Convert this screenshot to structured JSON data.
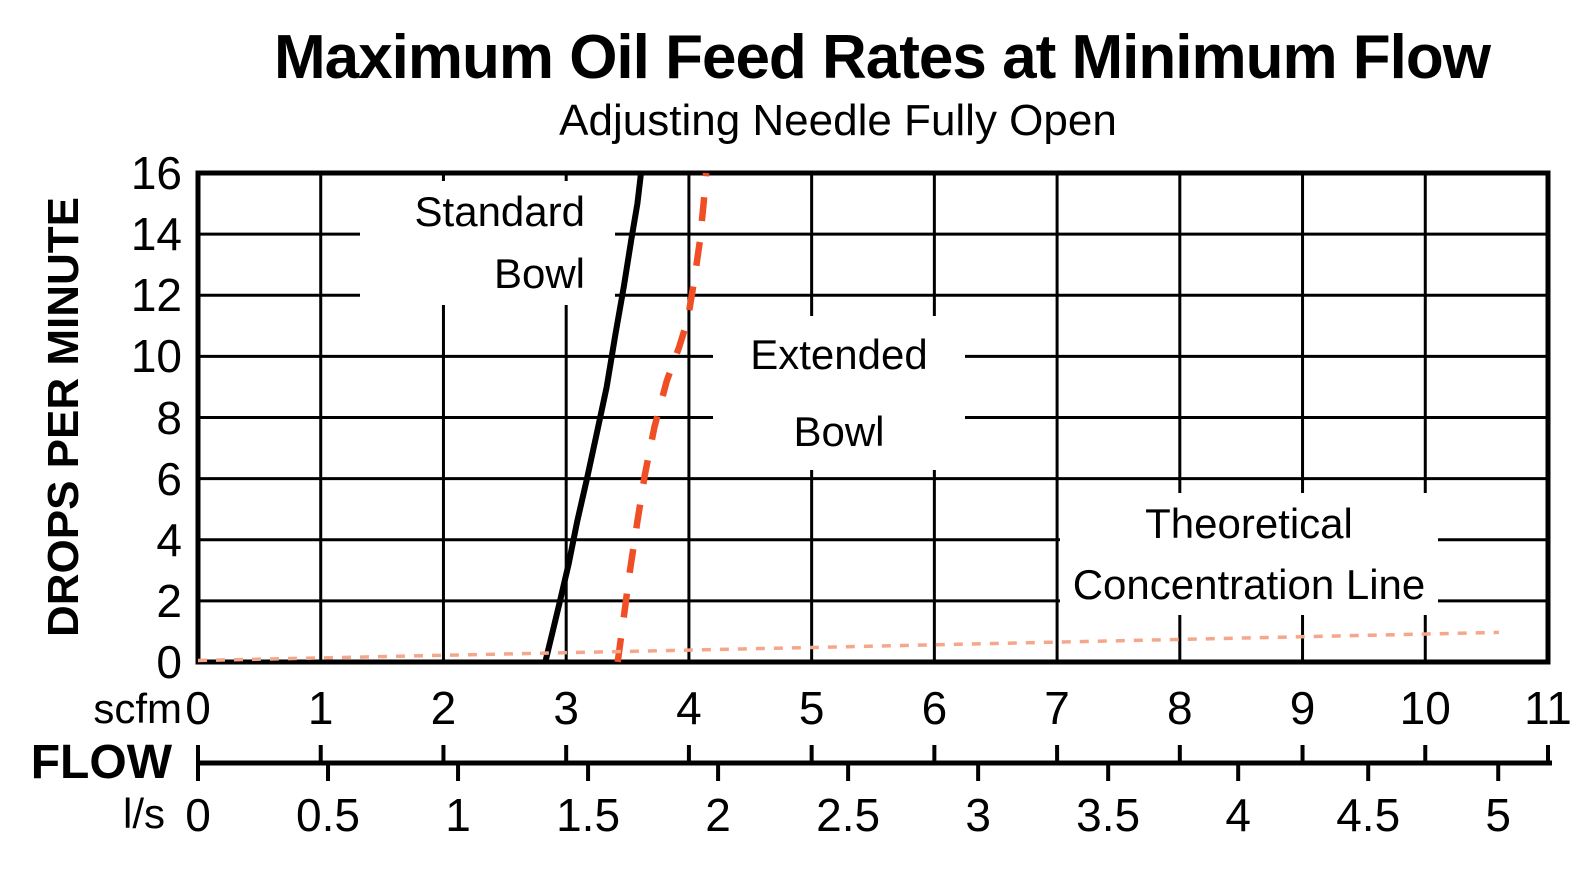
{
  "title": "Maximum Oil Feed Rates at Minimum Flow",
  "subtitle": "Adjusting Needle Fully Open",
  "flow_axis": {
    "label": "FLOW",
    "scfm_unit": "scfm",
    "ls_unit": "l/s"
  },
  "annotations": {
    "standard_bowl": {
      "lines": [
        "Standard",
        "Bowl"
      ]
    },
    "extended_bowl": {
      "lines": [
        "Extended",
        "Bowl"
      ]
    },
    "theoretical": {
      "lines": [
        "Theoretical",
        "Concentration Line"
      ]
    }
  },
  "chart_data": {
    "type": "line",
    "title": "Maximum Oil Feed Rates at Minimum Flow",
    "subtitle": "Adjusting Needle Fully Open",
    "y_axis": {
      "label": "DROPS PER MINUTE",
      "range": [
        0,
        16
      ],
      "ticks": [
        0,
        2,
        4,
        6,
        8,
        10,
        12,
        14,
        16
      ]
    },
    "x_axis": {
      "label": "FLOW",
      "scfm": {
        "range": [
          0,
          11
        ],
        "ticks": [
          0,
          1,
          2,
          3,
          4,
          5,
          6,
          7,
          8,
          9,
          10,
          11
        ]
      },
      "l_per_s": {
        "range": [
          0,
          5
        ],
        "ticks": [
          0,
          0.5,
          1,
          1.5,
          2,
          2.5,
          3,
          3.5,
          4,
          4.5,
          5
        ],
        "scfm_per_l_s": 2.1189
      }
    },
    "grid": {
      "vertical_every_scfm": 1,
      "horizontal_every_drops": 2
    },
    "colors": {
      "standard_bowl": "#000000",
      "extended_bowl": "#F04F26",
      "theoretical": "#F5A78C"
    },
    "series": [
      {
        "name": "Standard Bowl",
        "style": "solid",
        "color": "#000000",
        "width": 6,
        "points_scfm_drops": [
          [
            2.83,
            0
          ],
          [
            2.89,
            1
          ],
          [
            2.95,
            2
          ],
          [
            3.02,
            3.2
          ],
          [
            3.09,
            4.6
          ],
          [
            3.17,
            6
          ],
          [
            3.25,
            7.5
          ],
          [
            3.33,
            9
          ],
          [
            3.4,
            10.7
          ],
          [
            3.47,
            12.3
          ],
          [
            3.53,
            13.8
          ],
          [
            3.58,
            15
          ],
          [
            3.61,
            16
          ]
        ]
      },
      {
        "name": "Extended Bowl",
        "style": "dashed",
        "color": "#F04F26",
        "width": 6.5,
        "dash": [
          24,
          21
        ],
        "points_scfm_drops": [
          [
            3.42,
            0
          ],
          [
            3.47,
            1.5
          ],
          [
            3.52,
            3
          ],
          [
            3.58,
            4.6
          ],
          [
            3.64,
            6.1
          ],
          [
            3.72,
            7.7
          ],
          [
            3.82,
            9.2
          ],
          [
            3.92,
            10.3
          ],
          [
            3.99,
            11.2
          ],
          [
            4.04,
            12.4
          ],
          [
            4.09,
            13.8
          ],
          [
            4.12,
            15
          ],
          [
            4.14,
            16
          ]
        ]
      },
      {
        "name": "Theoretical Concentration Line",
        "style": "dotted",
        "color": "#F5A78C",
        "width": 3.5,
        "dash": [
          9,
          9
        ],
        "points_scfm_drops": [
          [
            0,
            0.05
          ],
          [
            5.3,
            0.5
          ],
          [
            10.6,
            0.97
          ]
        ]
      }
    ]
  }
}
